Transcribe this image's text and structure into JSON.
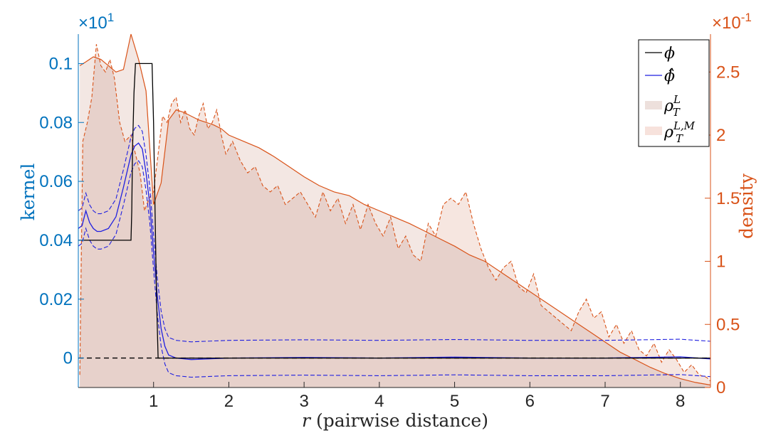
{
  "chart_data": {
    "type": "line",
    "xlabel_var": "r",
    "xlabel_rest": " (pairwise distance)",
    "ylabel_left": "kernel",
    "ylabel_right": "density",
    "left_exponent_base": "×10",
    "left_exponent_power": "1",
    "right_exponent_base": "×10",
    "right_exponent_power": "-1",
    "xlim": [
      0,
      8.4
    ],
    "ylim_left": [
      -0.01,
      0.11
    ],
    "ylim_right": [
      0,
      2.8
    ],
    "x_ticks": [
      1,
      2,
      3,
      4,
      5,
      6,
      7,
      8
    ],
    "x_tick_labels": [
      "1",
      "2",
      "3",
      "4",
      "5",
      "6",
      "7",
      "8"
    ],
    "left_ticks": [
      0,
      0.02,
      0.04,
      0.06,
      0.08,
      0.1
    ],
    "left_tick_labels": [
      "0",
      "0.02",
      "0.04",
      "0.06",
      "0.08",
      "0.1"
    ],
    "right_ticks": [
      0,
      0.5,
      1,
      1.5,
      2,
      2.5
    ],
    "right_tick_labels": [
      "0",
      "0.5",
      "1",
      "1.5",
      "2",
      "2.5"
    ],
    "grid": false,
    "legend_position": "top-right",
    "legend": [
      {
        "label": "ϕ",
        "style": "line",
        "color": "#000000"
      },
      {
        "label": "ϕ̂",
        "style": "line",
        "color": "#1F1FE0"
      },
      {
        "label": "ρ",
        "sup": "L",
        "sub": "T",
        "style": "patch",
        "color": "#EDE0DC"
      },
      {
        "label": "ρ",
        "sup": "L,M",
        "sub": "T",
        "style": "patch",
        "color": "#F7E2DC"
      }
    ],
    "colors": {
      "phi": "#000000",
      "phi_hat": "#1F1FE0",
      "rho_L_fill": "#F1E3DE",
      "rho_LM_fill": "#F6E6E0",
      "overlap_fill": "#E7D1CB",
      "rho_line": "#D95319",
      "left_axis": "#0072BD",
      "right_axis": "#D95319"
    },
    "series": [
      {
        "name": "ϕ",
        "axis": "left",
        "x": [
          0,
          0.7,
          0.71,
          0.72,
          0.74,
          0.76,
          0.98,
          1.0,
          1.02,
          1.04,
          1.06,
          8.4
        ],
        "y": [
          0.04,
          0.04,
          0.05,
          0.07,
          0.09,
          0.1,
          0.1,
          0.08,
          0.05,
          0.02,
          0,
          0
        ]
      },
      {
        "name": "ϕ̂",
        "axis": "left",
        "x": [
          0.0,
          0.05,
          0.1,
          0.15,
          0.2,
          0.25,
          0.3,
          0.4,
          0.5,
          0.6,
          0.7,
          0.75,
          0.8,
          0.85,
          0.9,
          0.95,
          1.0,
          1.05,
          1.1,
          1.15,
          1.2,
          1.3,
          1.5,
          2.0,
          3.0,
          4.0,
          5.0,
          6.0,
          7.0,
          8.0,
          8.4
        ],
        "y": [
          0.044,
          0.045,
          0.05,
          0.046,
          0.044,
          0.043,
          0.043,
          0.044,
          0.048,
          0.058,
          0.069,
          0.072,
          0.073,
          0.071,
          0.063,
          0.052,
          0.036,
          0.021,
          0.01,
          0.004,
          0.001,
          0.0,
          -0.0005,
          0.0,
          0.0002,
          0.0,
          0.0003,
          0.0,
          0.0,
          0.0004,
          -0.0003
        ]
      },
      {
        "name": "ρ",
        "axis": "right",
        "x": [
          0.02,
          0.1,
          0.2,
          0.3,
          0.4,
          0.5,
          0.6,
          0.7,
          0.8,
          0.9,
          1.0,
          1.1,
          1.2,
          1.3,
          1.4,
          1.5,
          1.6,
          1.7,
          1.8,
          1.9,
          2.0,
          2.2,
          2.4,
          2.6,
          2.8,
          3.0,
          3.2,
          3.4,
          3.6,
          3.8,
          4.0,
          4.2,
          4.4,
          4.6,
          4.8,
          5.0,
          5.2,
          5.4,
          5.6,
          5.8,
          6.0,
          6.2,
          6.4,
          6.6,
          6.8,
          7.0,
          7.2,
          7.4,
          7.6,
          7.8,
          8.0,
          8.2,
          8.4
        ],
        "y": [
          2.55,
          2.58,
          2.62,
          2.6,
          2.55,
          2.5,
          2.52,
          2.8,
          2.6,
          2.35,
          1.45,
          1.62,
          2.12,
          2.2,
          2.18,
          2.15,
          2.12,
          2.1,
          2.08,
          2.05,
          2.0,
          1.95,
          1.9,
          1.83,
          1.75,
          1.67,
          1.6,
          1.55,
          1.52,
          1.45,
          1.4,
          1.35,
          1.3,
          1.24,
          1.18,
          1.12,
          1.05,
          1.0,
          0.92,
          0.84,
          0.76,
          0.68,
          0.6,
          0.52,
          0.44,
          0.36,
          0.28,
          0.22,
          0.16,
          0.11,
          0.07,
          0.04,
          0.02
        ]
      },
      {
        "name": "ρ L,M",
        "axis": "right",
        "x": [
          0.02,
          0.06,
          0.12,
          0.18,
          0.24,
          0.3,
          0.36,
          0.42,
          0.48,
          0.55,
          0.62,
          0.7,
          0.76,
          0.82,
          0.88,
          0.94,
          1.0,
          1.06,
          1.12,
          1.18,
          1.24,
          1.3,
          1.36,
          1.42,
          1.48,
          1.54,
          1.6,
          1.66,
          1.72,
          1.78,
          1.84,
          1.9,
          1.96,
          2.05,
          2.15,
          2.25,
          2.35,
          2.45,
          2.55,
          2.65,
          2.75,
          2.85,
          2.95,
          3.05,
          3.15,
          3.25,
          3.35,
          3.45,
          3.55,
          3.65,
          3.75,
          3.85,
          3.95,
          4.05,
          4.15,
          4.25,
          4.35,
          4.45,
          4.55,
          4.65,
          4.75,
          4.85,
          4.95,
          5.05,
          5.15,
          5.25,
          5.35,
          5.45,
          5.55,
          5.65,
          5.75,
          5.85,
          5.95,
          6.05,
          6.15,
          6.25,
          6.35,
          6.45,
          6.55,
          6.65,
          6.75,
          6.85,
          6.95,
          7.05,
          7.15,
          7.25,
          7.35,
          7.45,
          7.55,
          7.65,
          7.75,
          7.85,
          7.95,
          8.05,
          8.15,
          8.25,
          8.35,
          8.4
        ],
        "y": [
          0.1,
          1.95,
          2.1,
          2.3,
          2.72,
          2.55,
          2.5,
          2.6,
          2.45,
          2.1,
          1.95,
          2.0,
          1.85,
          1.7,
          1.4,
          1.5,
          1.55,
          1.85,
          2.15,
          2.1,
          2.25,
          2.3,
          2.1,
          2.2,
          2.05,
          2.0,
          2.15,
          2.25,
          2.05,
          2.1,
          2.2,
          2.0,
          1.85,
          1.95,
          1.8,
          1.7,
          1.75,
          1.6,
          1.55,
          1.6,
          1.45,
          1.5,
          1.55,
          1.45,
          1.35,
          1.55,
          1.4,
          1.5,
          1.3,
          1.45,
          1.25,
          1.45,
          1.3,
          1.2,
          1.35,
          1.1,
          1.2,
          1.05,
          1.0,
          1.3,
          1.2,
          1.45,
          1.5,
          1.45,
          1.55,
          1.3,
          1.1,
          0.95,
          0.85,
          0.95,
          1.0,
          0.8,
          0.75,
          0.9,
          0.65,
          0.6,
          0.55,
          0.5,
          0.45,
          0.6,
          0.7,
          0.55,
          0.6,
          0.4,
          0.5,
          0.35,
          0.45,
          0.3,
          0.25,
          0.35,
          0.2,
          0.3,
          0.22,
          0.12,
          0.18,
          0.1,
          0.08,
          0.05
        ]
      }
    ]
  }
}
